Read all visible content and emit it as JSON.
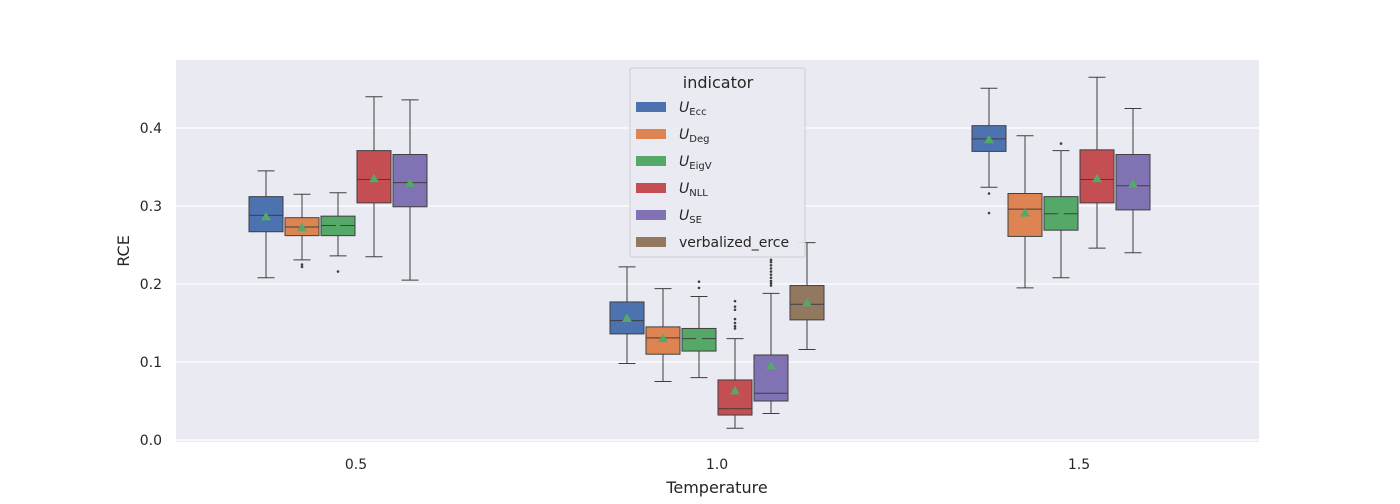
{
  "chart_data": {
    "type": "box",
    "title": "",
    "xlabel": "Temperature",
    "ylabel": "RCE",
    "ylim": [
      -0.005,
      0.49
    ],
    "yticks": [
      "0.0",
      "0.1",
      "0.2",
      "0.3",
      "0.4"
    ],
    "categories": [
      "0.5",
      "1.0",
      "1.5"
    ],
    "grid": true,
    "legend": {
      "title": "indicator",
      "placement": "upper-center",
      "entries": [
        {
          "base": "U",
          "sub": "Ecc",
          "color": "#4c72b0"
        },
        {
          "base": "U",
          "sub": "Deg",
          "color": "#dd8452"
        },
        {
          "base": "U",
          "sub": "EigV",
          "color": "#55a868"
        },
        {
          "base": "U",
          "sub": "NLL",
          "color": "#c44e52"
        },
        {
          "base": "U",
          "sub": "SE",
          "color": "#8172b3"
        },
        {
          "base": "verbalized_erce",
          "sub": "",
          "color": "#937860"
        }
      ]
    },
    "mean_marker_color": "#55a868",
    "series": [
      {
        "name": "U_Ecc",
        "color": "#4c72b0",
        "boxes": [
          {
            "q1": 0.267,
            "median": 0.288,
            "q3": 0.312,
            "whislo": 0.208,
            "whishi": 0.345,
            "mean": 0.286,
            "fliers": []
          },
          {
            "q1": 0.136,
            "median": 0.153,
            "q3": 0.177,
            "whislo": 0.098,
            "whishi": 0.222,
            "mean": 0.156,
            "fliers": []
          },
          {
            "q1": 0.37,
            "median": 0.386,
            "q3": 0.403,
            "whislo": 0.324,
            "whishi": 0.451,
            "mean": 0.385,
            "fliers": [
              0.316,
              0.291
            ]
          }
        ]
      },
      {
        "name": "U_Deg",
        "color": "#dd8452",
        "boxes": [
          {
            "q1": 0.262,
            "median": 0.273,
            "q3": 0.285,
            "whislo": 0.231,
            "whishi": 0.315,
            "mean": 0.272,
            "fliers": [
              0.225,
              0.222
            ]
          },
          {
            "q1": 0.11,
            "median": 0.131,
            "q3": 0.145,
            "whislo": 0.075,
            "whishi": 0.194,
            "mean": 0.13,
            "fliers": []
          },
          {
            "q1": 0.261,
            "median": 0.296,
            "q3": 0.316,
            "whislo": 0.195,
            "whishi": 0.39,
            "mean": 0.291,
            "fliers": []
          }
        ]
      },
      {
        "name": "U_EigV",
        "color": "#55a868",
        "boxes": [
          {
            "q1": 0.262,
            "median": 0.275,
            "q3": 0.287,
            "whislo": 0.236,
            "whishi": 0.317,
            "mean": 0.273,
            "fliers": [
              0.216
            ]
          },
          {
            "q1": 0.114,
            "median": 0.13,
            "q3": 0.143,
            "whislo": 0.08,
            "whishi": 0.184,
            "mean": 0.13,
            "fliers": [
              0.195,
              0.203
            ]
          },
          {
            "q1": 0.269,
            "median": 0.29,
            "q3": 0.312,
            "whislo": 0.208,
            "whishi": 0.371,
            "mean": 0.29,
            "fliers": [
              0.38
            ]
          }
        ]
      },
      {
        "name": "U_NLL",
        "color": "#c44e52",
        "boxes": [
          {
            "q1": 0.304,
            "median": 0.334,
            "q3": 0.371,
            "whislo": 0.235,
            "whishi": 0.44,
            "mean": 0.335,
            "fliers": []
          },
          {
            "q1": 0.032,
            "median": 0.04,
            "q3": 0.077,
            "whislo": 0.015,
            "whishi": 0.13,
            "mean": 0.063,
            "fliers": [
              0.143,
              0.146,
              0.15,
              0.155,
              0.167,
              0.171,
              0.178
            ]
          },
          {
            "q1": 0.304,
            "median": 0.334,
            "q3": 0.372,
            "whislo": 0.246,
            "whishi": 0.465,
            "mean": 0.335,
            "fliers": []
          }
        ]
      },
      {
        "name": "U_SE",
        "color": "#8172b3",
        "boxes": [
          {
            "q1": 0.299,
            "median": 0.33,
            "q3": 0.366,
            "whislo": 0.205,
            "whishi": 0.436,
            "mean": 0.329,
            "fliers": []
          },
          {
            "q1": 0.05,
            "median": 0.06,
            "q3": 0.109,
            "whislo": 0.034,
            "whishi": 0.188,
            "mean": 0.095,
            "fliers": [
              0.198,
              0.201,
              0.204,
              0.208,
              0.212,
              0.216,
              0.22,
              0.224,
              0.228,
              0.231
            ]
          },
          {
            "q1": 0.295,
            "median": 0.326,
            "q3": 0.366,
            "whislo": 0.24,
            "whishi": 0.425,
            "mean": 0.328,
            "fliers": []
          }
        ]
      },
      {
        "name": "verbalized_erce",
        "color": "#937860",
        "boxes": [
          null,
          {
            "q1": 0.154,
            "median": 0.174,
            "q3": 0.198,
            "whislo": 0.116,
            "whishi": 0.253,
            "mean": 0.176,
            "fliers": []
          },
          null
        ]
      }
    ]
  }
}
